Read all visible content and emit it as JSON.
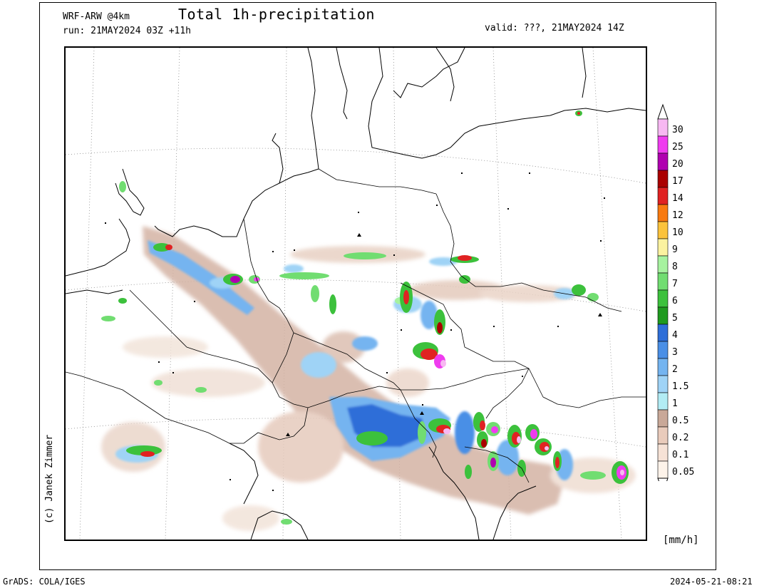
{
  "header": {
    "model": "WRF-ARW @4km",
    "run": "run: 21MAY2024 03Z +11h",
    "title": "Total 1h-precipitation",
    "valid": "valid: ???, 21MAY2024 14Z"
  },
  "legend": {
    "unit": "[mm/h]",
    "levels": [
      "0.05",
      "0.1",
      "0.2",
      "0.5",
      "1",
      "1.5",
      "2",
      "3",
      "4",
      "5",
      "6",
      "7",
      "8",
      "9",
      "10",
      "12",
      "14",
      "17",
      "20",
      "25",
      "30"
    ],
    "colors": [
      "#fdf3ea",
      "#f6e2d6",
      "#e9cbbb",
      "#c9a898",
      "#b2ecf4",
      "#9fd3f6",
      "#74b4f0",
      "#4a8fe6",
      "#2e6ed8",
      "#1f9a1f",
      "#3cc13c",
      "#71dd71",
      "#a6f29f",
      "#fbf2a0",
      "#fbc33c",
      "#f87a10",
      "#e02222",
      "#aa0000",
      "#b000b0",
      "#ef3cef",
      "#f7b8f2"
    ]
  },
  "footer": {
    "copyright": "(c) Janek Zimmer",
    "software": "GrADS: COLA/IGES",
    "timestamp": "2024-05-21-08:21"
  }
}
